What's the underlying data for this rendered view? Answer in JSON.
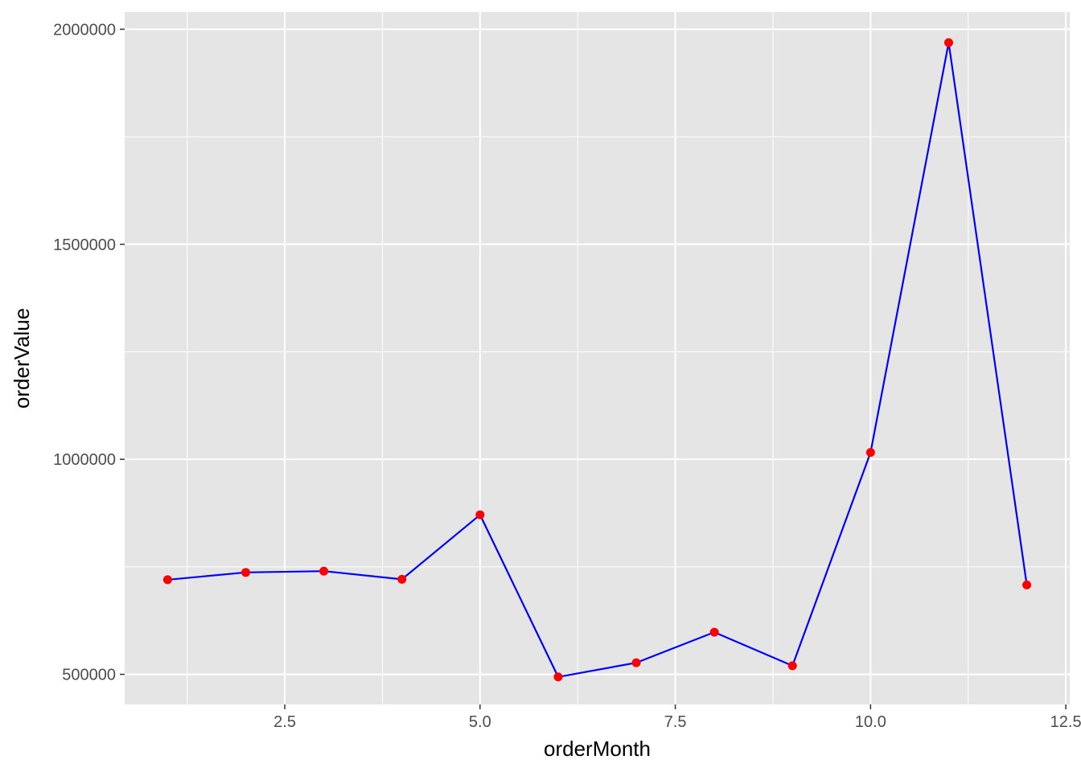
{
  "chart_data": {
    "type": "line",
    "title": "",
    "xlabel": "orderMonth",
    "ylabel": "orderValue",
    "xlim": [
      0.45,
      12.55
    ],
    "ylim": [
      430000,
      2040000
    ],
    "x_major_ticks": [
      2.5,
      5.0,
      7.5,
      10.0,
      12.5
    ],
    "x_minor_ticks": [
      1.25,
      3.75,
      6.25,
      8.75,
      11.25
    ],
    "x_tick_labels": [
      "2.5",
      "5.0",
      "7.5",
      "10.0",
      "12.5"
    ],
    "y_major_ticks": [
      500000,
      1000000,
      1500000,
      2000000
    ],
    "y_minor_ticks": [
      750000,
      1250000,
      1750000
    ],
    "y_tick_labels": [
      "500000",
      "1000000",
      "1500000",
      "2000000"
    ],
    "grid": true,
    "colors": {
      "panel": "#e5e5e5",
      "grid": "#ffffff",
      "line": "#0000ff",
      "points": "#ff0000",
      "tick": "#333333"
    },
    "series": [
      {
        "x": [
          1,
          2,
          3,
          4,
          5,
          6,
          7,
          8,
          9,
          10,
          11,
          12
        ],
        "y": [
          720000,
          737000,
          740000,
          721000,
          871000,
          494000,
          527000,
          598000,
          520000,
          1016000,
          1969000,
          708000
        ]
      }
    ]
  }
}
